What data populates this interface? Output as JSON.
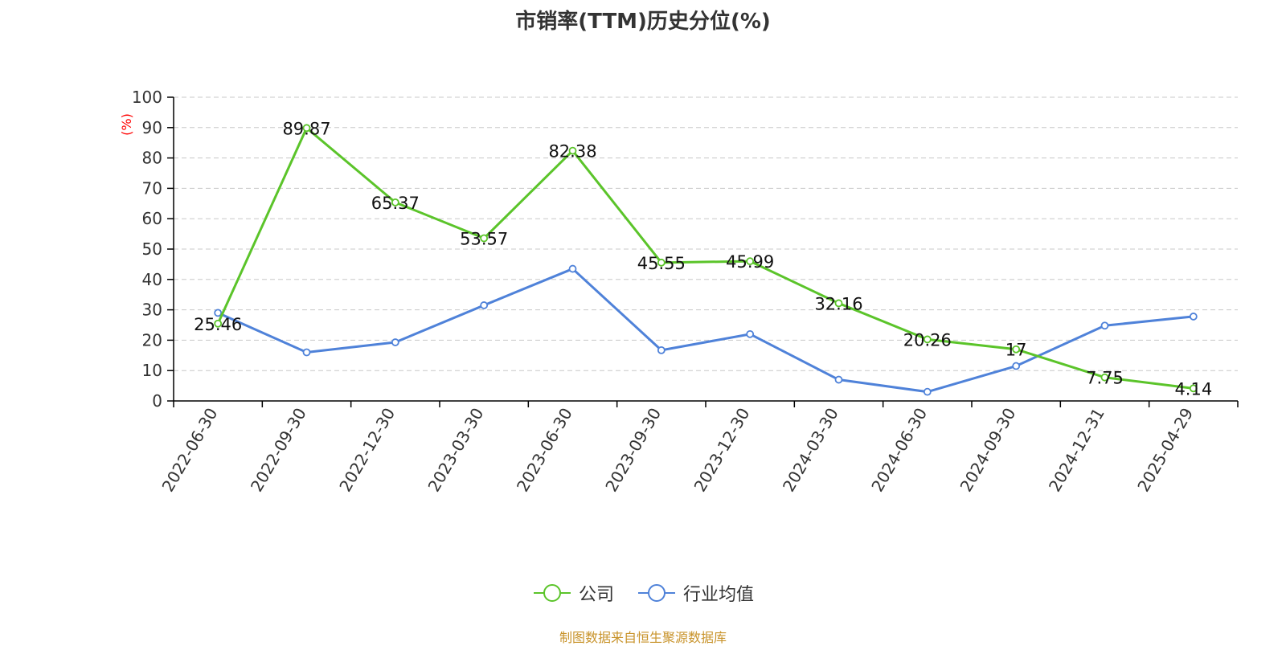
{
  "chart_data": {
    "type": "line",
    "title": "市销率(TTM)历史分位(%)",
    "xlabel": "",
    "ylabel": "(%)",
    "ylim": [
      0,
      100
    ],
    "yticks": [
      0,
      10,
      20,
      30,
      40,
      50,
      60,
      70,
      80,
      90,
      100
    ],
    "categories": [
      "2022-06-30",
      "2022-09-30",
      "2022-12-30",
      "2023-03-30",
      "2023-06-30",
      "2023-09-30",
      "2023-12-30",
      "2024-03-30",
      "2024-06-30",
      "2024-09-30",
      "2024-12-31",
      "2025-04-29"
    ],
    "grid": true,
    "legend_position": "bottom",
    "series": [
      {
        "name": "公司",
        "color": "#5bc42a",
        "values": [
          25.46,
          89.87,
          65.37,
          53.57,
          82.38,
          45.55,
          45.99,
          32.16,
          20.26,
          17,
          7.75,
          4.14
        ],
        "labels": [
          "25.46",
          "89.87",
          "65.37",
          "53.57",
          "82.38",
          "45.55",
          "45.99",
          "32.16",
          "20.26",
          "17",
          "7.75",
          "4.14"
        ]
      },
      {
        "name": "行业均值",
        "color": "#4f82d9",
        "values": [
          29.0,
          16.0,
          19.3,
          31.5,
          43.5,
          16.7,
          22.0,
          7.0,
          3.0,
          11.5,
          24.8,
          27.8
        ]
      }
    ]
  },
  "footer": {
    "source": "制图数据来自恒生聚源数据库"
  }
}
